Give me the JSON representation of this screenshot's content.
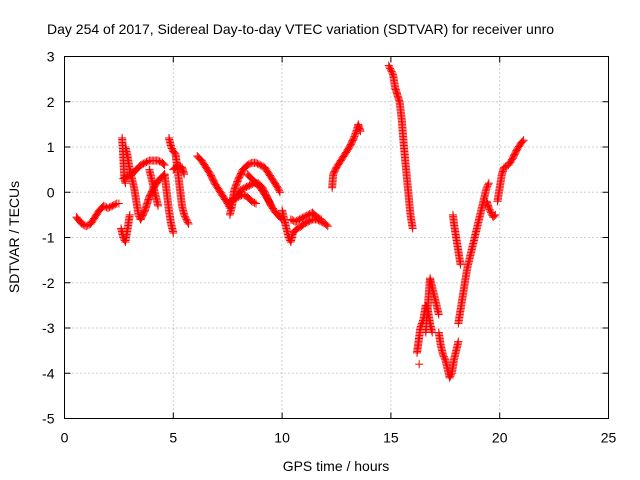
{
  "chart_data": {
    "type": "scatter",
    "title": "Day 254 of 2017, Sidereal Day-to-day VTEC variation (SDTVAR) for receiver unro",
    "xlabel": "GPS time / hours",
    "ylabel": "SDTVAR / TECUs",
    "xlim": [
      0,
      25
    ],
    "ylim": [
      -5,
      3
    ],
    "x_ticks": [
      0,
      5,
      10,
      15,
      20,
      25
    ],
    "x_tick_labels": [
      "0",
      "5",
      "10",
      "15",
      "20",
      "25"
    ],
    "y_ticks": [
      -5,
      -4,
      -3,
      -2,
      -1,
      0,
      1,
      2,
      3
    ],
    "y_tick_labels": [
      "-5",
      "-4",
      "-3",
      "-2",
      "-1",
      "0",
      "1",
      "2",
      "3"
    ],
    "grid": true,
    "marker": "+",
    "series": [
      {
        "name": "SDTVAR",
        "color": "#ff0000",
        "tracks": [
          [
            [
              0.55,
              -0.55
            ],
            [
              0.8,
              -0.7
            ],
            [
              1.0,
              -0.75
            ],
            [
              1.2,
              -0.7
            ],
            [
              1.4,
              -0.55
            ],
            [
              1.6,
              -0.4
            ],
            [
              1.8,
              -0.3
            ],
            [
              2.0,
              -0.35
            ],
            [
              2.2,
              -0.3
            ],
            [
              2.4,
              -0.25
            ],
            [
              2.5,
              -0.25
            ]
          ],
          [
            [
              2.6,
              -0.8
            ],
            [
              2.7,
              -1.0
            ],
            [
              2.8,
              -1.1
            ],
            [
              2.9,
              -0.8
            ],
            [
              3.0,
              -0.5
            ]
          ],
          [
            [
              2.65,
              1.2
            ],
            [
              2.7,
              0.8
            ],
            [
              2.75,
              0.3
            ],
            [
              2.8,
              0.2
            ]
          ],
          [
            [
              2.8,
              1.0
            ],
            [
              2.9,
              0.8
            ],
            [
              3.0,
              0.5
            ],
            [
              3.1,
              0.3
            ],
            [
              3.2,
              0.1
            ],
            [
              3.3,
              -0.2
            ],
            [
              3.4,
              -0.5
            ],
            [
              3.5,
              -0.6
            ]
          ],
          [
            [
              2.7,
              0.3
            ],
            [
              2.9,
              0.35
            ],
            [
              3.1,
              0.4
            ],
            [
              3.3,
              0.5
            ],
            [
              3.5,
              0.6
            ],
            [
              3.7,
              0.65
            ],
            [
              3.9,
              0.7
            ],
            [
              4.1,
              0.7
            ],
            [
              4.3,
              0.7
            ],
            [
              4.5,
              0.65
            ],
            [
              4.6,
              0.6
            ]
          ],
          [
            [
              3.5,
              -0.6
            ],
            [
              3.7,
              -0.4
            ],
            [
              3.9,
              -0.1
            ],
            [
              4.1,
              0.1
            ],
            [
              4.3,
              0.25
            ],
            [
              4.5,
              0.35
            ],
            [
              4.6,
              0.4
            ]
          ],
          [
            [
              3.9,
              0.5
            ],
            [
              4.0,
              0.3
            ],
            [
              4.1,
              0.1
            ],
            [
              4.2,
              -0.1
            ],
            [
              4.3,
              -0.3
            ]
          ],
          [
            [
              4.6,
              0.4
            ],
            [
              4.7,
              0.0
            ],
            [
              4.8,
              -0.4
            ],
            [
              4.9,
              -0.7
            ],
            [
              5.0,
              -0.9
            ]
          ],
          [
            [
              4.8,
              1.2
            ],
            [
              4.9,
              1.0
            ],
            [
              5.0,
              0.9
            ],
            [
              5.1,
              0.85
            ],
            [
              5.2,
              0.5
            ],
            [
              5.3,
              0.1
            ],
            [
              5.4,
              -0.3
            ],
            [
              5.5,
              -0.5
            ],
            [
              5.6,
              -0.6
            ],
            [
              5.7,
              -0.7
            ]
          ],
          [
            [
              5.0,
              0.5
            ],
            [
              5.2,
              0.6
            ],
            [
              5.4,
              0.55
            ],
            [
              5.5,
              0.4
            ]
          ],
          [
            [
              6.1,
              0.8
            ],
            [
              6.3,
              0.7
            ],
            [
              6.5,
              0.55
            ],
            [
              6.7,
              0.4
            ],
            [
              6.9,
              0.2
            ],
            [
              7.1,
              0.05
            ],
            [
              7.3,
              -0.1
            ],
            [
              7.5,
              -0.25
            ],
            [
              7.6,
              -0.35
            ]
          ],
          [
            [
              7.6,
              -0.5
            ],
            [
              7.7,
              -0.3
            ],
            [
              7.8,
              0.05
            ],
            [
              8.0,
              0.3
            ],
            [
              8.2,
              0.5
            ],
            [
              8.4,
              0.6
            ],
            [
              8.6,
              0.65
            ],
            [
              8.8,
              0.65
            ],
            [
              9.0,
              0.6
            ],
            [
              9.2,
              0.55
            ],
            [
              9.4,
              0.4
            ],
            [
              9.6,
              0.25
            ],
            [
              9.8,
              0.1
            ],
            [
              9.9,
              0.0
            ]
          ],
          [
            [
              7.7,
              -0.2
            ],
            [
              7.9,
              -0.1
            ],
            [
              8.1,
              0.05
            ],
            [
              8.3,
              0.1
            ],
            [
              8.5,
              0.15
            ],
            [
              8.7,
              0.2
            ],
            [
              8.9,
              0.2
            ],
            [
              9.1,
              0.1
            ],
            [
              9.3,
              -0.1
            ],
            [
              9.5,
              -0.3
            ],
            [
              9.7,
              -0.45
            ],
            [
              9.9,
              -0.55
            ],
            [
              10.0,
              -0.6
            ]
          ],
          [
            [
              7.6,
              -0.2
            ],
            [
              7.8,
              -0.15
            ],
            [
              8.0,
              -0.1
            ],
            [
              8.2,
              -0.05
            ],
            [
              8.4,
              -0.1
            ],
            [
              8.6,
              -0.2
            ],
            [
              8.8,
              -0.25
            ]
          ],
          [
            [
              8.4,
              0.4
            ],
            [
              8.6,
              0.3
            ],
            [
              8.8,
              0.2
            ],
            [
              9.0,
              0.1
            ],
            [
              9.2,
              -0.05
            ],
            [
              9.4,
              -0.2
            ],
            [
              9.5,
              -0.3
            ]
          ],
          [
            [
              10.0,
              -0.4
            ],
            [
              10.1,
              -0.6
            ],
            [
              10.2,
              -0.8
            ],
            [
              10.3,
              -1.0
            ],
            [
              10.4,
              -1.1
            ],
            [
              10.5,
              -0.9
            ],
            [
              10.7,
              -0.8
            ],
            [
              10.9,
              -0.75
            ],
            [
              11.0,
              -0.7
            ],
            [
              11.2,
              -0.65
            ],
            [
              11.4,
              -0.6
            ],
            [
              11.6,
              -0.6
            ],
            [
              11.8,
              -0.65
            ],
            [
              12.0,
              -0.7
            ],
            [
              12.1,
              -0.75
            ]
          ],
          [
            [
              10.4,
              -0.6
            ],
            [
              10.6,
              -0.65
            ],
            [
              10.8,
              -0.6
            ],
            [
              11.0,
              -0.55
            ],
            [
              11.2,
              -0.5
            ],
            [
              11.4,
              -0.45
            ],
            [
              11.6,
              -0.55
            ],
            [
              11.8,
              -0.6
            ]
          ],
          [
            [
              12.3,
              0.1
            ],
            [
              12.35,
              0.4
            ],
            [
              12.5,
              0.55
            ],
            [
              12.7,
              0.7
            ],
            [
              12.9,
              0.85
            ],
            [
              13.1,
              1.0
            ],
            [
              13.3,
              1.2
            ],
            [
              13.45,
              1.4
            ],
            [
              13.5,
              1.5
            ],
            [
              13.6,
              1.35
            ]
          ],
          [
            [
              14.9,
              2.8
            ],
            [
              15.0,
              2.7
            ],
            [
              15.1,
              2.6
            ],
            [
              15.2,
              2.3
            ],
            [
              15.3,
              2.15
            ],
            [
              15.4,
              2.0
            ],
            [
              15.5,
              1.6
            ],
            [
              15.6,
              1.0
            ],
            [
              15.7,
              0.5
            ],
            [
              15.8,
              0.0
            ],
            [
              15.9,
              -0.5
            ],
            [
              16.0,
              -0.8
            ]
          ],
          [
            [
              16.2,
              -3.55
            ],
            [
              16.3,
              -3.2
            ],
            [
              16.35,
              -3.0
            ],
            [
              16.5,
              -2.8
            ],
            [
              16.6,
              -2.5
            ],
            [
              16.7,
              -2.6
            ],
            [
              16.8,
              -2.9
            ],
            [
              16.9,
              -3.1
            ]
          ],
          [
            [
              16.6,
              -3.1
            ],
            [
              16.7,
              -2.5
            ],
            [
              16.8,
              -1.9
            ],
            [
              16.9,
              -2.1
            ],
            [
              17.0,
              -2.3
            ],
            [
              17.1,
              -2.5
            ],
            [
              17.2,
              -2.7
            ]
          ],
          [
            [
              16.3,
              -3.8
            ]
          ],
          [
            [
              17.2,
              -3.1
            ],
            [
              17.3,
              -3.4
            ],
            [
              17.4,
              -3.6
            ],
            [
              17.5,
              -3.7
            ],
            [
              17.6,
              -3.9
            ],
            [
              17.7,
              -4.1
            ],
            [
              17.8,
              -4.0
            ],
            [
              17.9,
              -3.7
            ],
            [
              18.0,
              -3.5
            ],
            [
              18.1,
              -3.3
            ]
          ],
          [
            [
              17.85,
              -0.5
            ],
            [
              17.9,
              -0.7
            ],
            [
              18.0,
              -1.0
            ],
            [
              18.1,
              -1.3
            ],
            [
              18.2,
              -1.6
            ]
          ],
          [
            [
              18.1,
              -2.9
            ],
            [
              18.2,
              -2.6
            ],
            [
              18.3,
              -2.3
            ],
            [
              18.4,
              -2.0
            ],
            [
              18.5,
              -1.7
            ],
            [
              18.6,
              -1.5
            ],
            [
              18.7,
              -1.3
            ],
            [
              18.8,
              -1.1
            ],
            [
              18.9,
              -0.9
            ],
            [
              19.0,
              -0.7
            ],
            [
              19.1,
              -0.5
            ],
            [
              19.2,
              -0.3
            ],
            [
              19.3,
              -0.1
            ],
            [
              19.4,
              0.1
            ],
            [
              19.5,
              0.2
            ]
          ],
          [
            [
              19.4,
              -0.2
            ],
            [
              19.5,
              -0.35
            ],
            [
              19.6,
              -0.45
            ],
            [
              19.7,
              -0.55
            ],
            [
              19.8,
              -0.5
            ]
          ],
          [
            [
              19.9,
              -0.2
            ],
            [
              20.0,
              0.1
            ],
            [
              20.1,
              0.4
            ],
            [
              20.2,
              0.55
            ],
            [
              20.4,
              0.6
            ],
            [
              20.6,
              0.75
            ],
            [
              20.8,
              0.95
            ],
            [
              21.0,
              1.1
            ],
            [
              21.1,
              1.15
            ]
          ]
        ]
      }
    ]
  }
}
